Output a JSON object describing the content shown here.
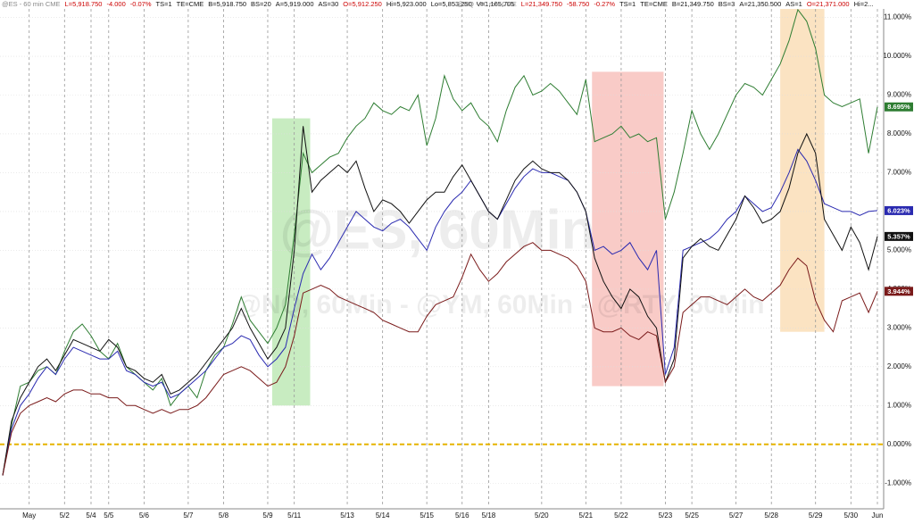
{
  "chart_data": {
    "type": "line",
    "header": [
      [
        {
          "text": "@ES - 60 min CME",
          "color": "#888"
        },
        {
          "text": "L=5,918.750",
          "color": "#c00"
        },
        {
          "text": "-4.000",
          "color": "#c00"
        },
        {
          "text": "-0.07%",
          "color": "#c00"
        },
        {
          "text": "TS=1",
          "color": "#111"
        },
        {
          "text": "TE=CME",
          "color": "#111"
        },
        {
          "text": "B=5,918.750",
          "color": "#111"
        },
        {
          "text": "BS=20",
          "color": "#111"
        },
        {
          "text": "A=5,919.000",
          "color": "#111"
        },
        {
          "text": "AS=30",
          "color": "#111"
        },
        {
          "text": "O=5,912.250",
          "color": "#c00"
        },
        {
          "text": "Hi=5,923.000",
          "color": "#111"
        },
        {
          "text": "Lo=5,853.250",
          "color": "#111"
        },
        {
          "text": "V=1,165,705",
          "color": "#111"
        }
      ],
      [
        {
          "text": "@NQ - 60 min CME",
          "color": "#888"
        },
        {
          "text": "L=21,349.750",
          "color": "#c00"
        },
        {
          "text": "-58.750",
          "color": "#c00"
        },
        {
          "text": "-0.27%",
          "color": "#c00"
        },
        {
          "text": "TS=1",
          "color": "#111"
        },
        {
          "text": "TE=CME",
          "color": "#111"
        },
        {
          "text": "B=21,349.750",
          "color": "#111"
        },
        {
          "text": "BS=3",
          "color": "#111"
        },
        {
          "text": "A=21,350.500",
          "color": "#111"
        },
        {
          "text": "AS=1",
          "color": "#111"
        },
        {
          "text": "O=21,371.000",
          "color": "#c00"
        },
        {
          "text": "Hi=2...",
          "color": "#111"
        }
      ]
    ],
    "watermarks": [
      "@ES, 60Min",
      "@NQ, 60Min - @YM, 60Min - @RTY, 60Min"
    ],
    "xlim": [
      0,
      99
    ],
    "xticks": [
      {
        "value": 3,
        "label": "May"
      },
      {
        "value": 7,
        "label": "5/2"
      },
      {
        "value": 10,
        "label": "5/4"
      },
      {
        "value": 12,
        "label": "5/5"
      },
      {
        "value": 16,
        "label": "5/6"
      },
      {
        "value": 21,
        "label": "5/7"
      },
      {
        "value": 25,
        "label": "5/8"
      },
      {
        "value": 30,
        "label": "5/9"
      },
      {
        "value": 33,
        "label": "5/11"
      },
      {
        "value": 39,
        "label": "5/13"
      },
      {
        "value": 43,
        "label": "5/14"
      },
      {
        "value": 48,
        "label": "5/15"
      },
      {
        "value": 52,
        "label": "5/16"
      },
      {
        "value": 55,
        "label": "5/18"
      },
      {
        "value": 61,
        "label": "5/20"
      },
      {
        "value": 66,
        "label": "5/21"
      },
      {
        "value": 70,
        "label": "5/22"
      },
      {
        "value": 75,
        "label": "5/23"
      },
      {
        "value": 78,
        "label": "5/25"
      },
      {
        "value": 83,
        "label": "5/27"
      },
      {
        "value": 87,
        "label": "5/28"
      },
      {
        "value": 92,
        "label": "5/29"
      },
      {
        "value": 96,
        "label": "5/30"
      },
      {
        "value": 99,
        "label": "Jun"
      }
    ],
    "ylim": [
      -1.5,
      11.3
    ],
    "yticks": [
      {
        "value": 11,
        "label": "11.000%"
      },
      {
        "value": 10,
        "label": "10.000%"
      },
      {
        "value": 9,
        "label": "9.000%"
      },
      {
        "value": 8,
        "label": "8.000%"
      },
      {
        "value": 7,
        "label": "7.000%"
      },
      {
        "value": 6,
        "label": "6.000%"
      },
      {
        "value": 5,
        "label": "5.000%"
      },
      {
        "value": 4,
        "label": "4.000%"
      },
      {
        "value": 3,
        "label": "3.000%"
      },
      {
        "value": 2,
        "label": "2.000%"
      },
      {
        "value": 1,
        "label": "1.000%"
      },
      {
        "value": 0,
        "label": "0.000%"
      },
      {
        "value": -1,
        "label": "-1.000%"
      }
    ],
    "reference_line": {
      "value": 0,
      "color": "#e6b400"
    },
    "highlights": [
      {
        "x": [
          30.5,
          34.8
        ],
        "y": [
          1.0,
          8.4
        ],
        "color": "#b6e6ac"
      },
      {
        "x": [
          66.7,
          74.8
        ],
        "y": [
          1.5,
          9.6
        ],
        "color": "#f7b9b4"
      },
      {
        "x": [
          88.0,
          93.0
        ],
        "y": [
          2.9,
          11.3
        ],
        "color": "#f9d9ae"
      }
    ],
    "series": [
      {
        "color": "#2e7d32",
        "last_label": "8.695%",
        "values": [
          -0.8,
          0.5,
          1.5,
          1.6,
          1.9,
          2.0,
          1.8,
          2.4,
          2.9,
          3.1,
          2.8,
          2.4,
          2.2,
          2.6,
          2.0,
          1.8,
          1.6,
          1.4,
          1.7,
          1.0,
          1.3,
          1.5,
          1.2,
          1.9,
          2.3,
          2.5,
          3.1,
          3.8,
          3.2,
          2.9,
          2.6,
          3.0,
          3.6,
          5.4,
          7.5,
          7.0,
          7.2,
          7.4,
          7.5,
          7.9,
          8.2,
          8.4,
          8.8,
          8.6,
          8.5,
          8.7,
          8.6,
          9.0,
          7.7,
          8.4,
          9.5,
          8.9,
          8.6,
          8.8,
          8.4,
          8.2,
          7.8,
          8.6,
          9.2,
          9.5,
          9.0,
          9.1,
          9.3,
          9.1,
          8.8,
          8.5,
          9.4,
          7.8,
          7.9,
          8.0,
          8.2,
          7.9,
          8.0,
          7.8,
          7.9,
          5.8,
          6.5,
          7.5,
          8.6,
          8.0,
          7.6,
          8.0,
          8.5,
          9.0,
          9.3,
          9.2,
          9.0,
          9.4,
          9.8,
          10.4,
          11.2,
          10.9,
          10.2,
          9.0,
          8.8,
          8.7,
          8.8,
          8.9,
          7.5,
          8.695
        ]
      },
      {
        "color": "#2a2ab0",
        "last_label": "6.023%",
        "values": [
          -0.8,
          0.4,
          1.0,
          1.3,
          1.7,
          2.0,
          1.8,
          2.2,
          2.5,
          2.4,
          2.3,
          2.2,
          2.2,
          2.4,
          1.9,
          1.8,
          1.6,
          1.5,
          1.6,
          1.2,
          1.3,
          1.5,
          1.7,
          1.9,
          2.2,
          2.5,
          2.6,
          2.8,
          2.7,
          2.3,
          2.0,
          2.2,
          2.5,
          3.5,
          4.4,
          4.9,
          4.5,
          4.8,
          5.2,
          5.6,
          6.0,
          5.8,
          5.6,
          5.5,
          5.7,
          5.8,
          5.6,
          5.3,
          5.0,
          5.6,
          6.0,
          6.3,
          6.5,
          6.8,
          6.4,
          6.0,
          5.8,
          6.2,
          6.6,
          6.9,
          7.1,
          7.0,
          7.0,
          6.9,
          6.8,
          6.5,
          6.0,
          5.0,
          5.1,
          4.9,
          5.0,
          5.2,
          4.8,
          4.5,
          5.0,
          1.8,
          2.5,
          5.0,
          5.1,
          5.2,
          5.3,
          5.5,
          5.8,
          6.0,
          6.4,
          6.2,
          6.0,
          6.1,
          6.5,
          7.0,
          7.6,
          7.3,
          6.8,
          6.2,
          6.1,
          6.0,
          6.0,
          5.9,
          6.0,
          6.023
        ]
      },
      {
        "color": "#111111",
        "last_label": "5.357%",
        "values": [
          -0.8,
          0.6,
          1.2,
          1.6,
          2.0,
          2.2,
          1.9,
          2.3,
          2.7,
          2.6,
          2.5,
          2.4,
          2.7,
          2.5,
          2.0,
          1.9,
          1.7,
          1.6,
          1.8,
          1.3,
          1.4,
          1.6,
          1.8,
          2.1,
          2.4,
          2.7,
          3.0,
          3.5,
          3.0,
          2.6,
          2.2,
          2.5,
          3.0,
          5.0,
          8.2,
          6.5,
          6.8,
          7.0,
          7.2,
          7.0,
          7.3,
          6.6,
          6.0,
          6.3,
          6.2,
          6.0,
          5.7,
          6.0,
          6.3,
          6.5,
          6.5,
          6.9,
          7.2,
          6.8,
          6.4,
          6.0,
          5.8,
          6.3,
          6.8,
          7.1,
          7.3,
          7.1,
          7.0,
          7.0,
          6.8,
          6.5,
          6.0,
          4.8,
          4.2,
          3.8,
          3.5,
          4.0,
          3.8,
          3.3,
          3.0,
          1.6,
          2.2,
          4.8,
          5.1,
          5.3,
          5.1,
          5.0,
          5.4,
          5.8,
          6.4,
          6.1,
          5.7,
          5.8,
          6.0,
          6.6,
          7.5,
          8.0,
          7.5,
          5.8,
          5.4,
          5.0,
          5.6,
          5.2,
          4.5,
          5.357
        ]
      },
      {
        "color": "#7a1a1a",
        "last_label": "3.944%",
        "values": [
          -0.8,
          0.3,
          0.8,
          1.0,
          1.1,
          1.2,
          1.1,
          1.3,
          1.4,
          1.4,
          1.3,
          1.3,
          1.2,
          1.2,
          1.0,
          1.0,
          0.9,
          0.8,
          0.9,
          0.8,
          0.9,
          0.9,
          1.0,
          1.2,
          1.5,
          1.8,
          1.9,
          2.0,
          1.9,
          1.7,
          1.5,
          1.6,
          2.0,
          2.8,
          3.9,
          4.0,
          4.1,
          4.0,
          3.8,
          3.7,
          3.6,
          3.5,
          3.4,
          3.2,
          3.1,
          3.0,
          2.9,
          2.9,
          3.3,
          3.6,
          3.7,
          3.8,
          4.3,
          4.9,
          4.5,
          4.2,
          4.4,
          4.7,
          4.9,
          5.1,
          5.2,
          5.0,
          5.0,
          4.9,
          4.8,
          4.6,
          4.2,
          3.0,
          2.9,
          2.9,
          3.0,
          2.8,
          2.7,
          2.9,
          2.8,
          1.6,
          2.0,
          3.4,
          3.6,
          3.8,
          3.8,
          3.7,
          3.6,
          3.8,
          4.0,
          3.8,
          3.7,
          3.9,
          4.1,
          4.5,
          4.8,
          4.6,
          3.7,
          3.2,
          2.9,
          3.7,
          3.8,
          3.9,
          3.4,
          3.944
        ]
      }
    ]
  }
}
